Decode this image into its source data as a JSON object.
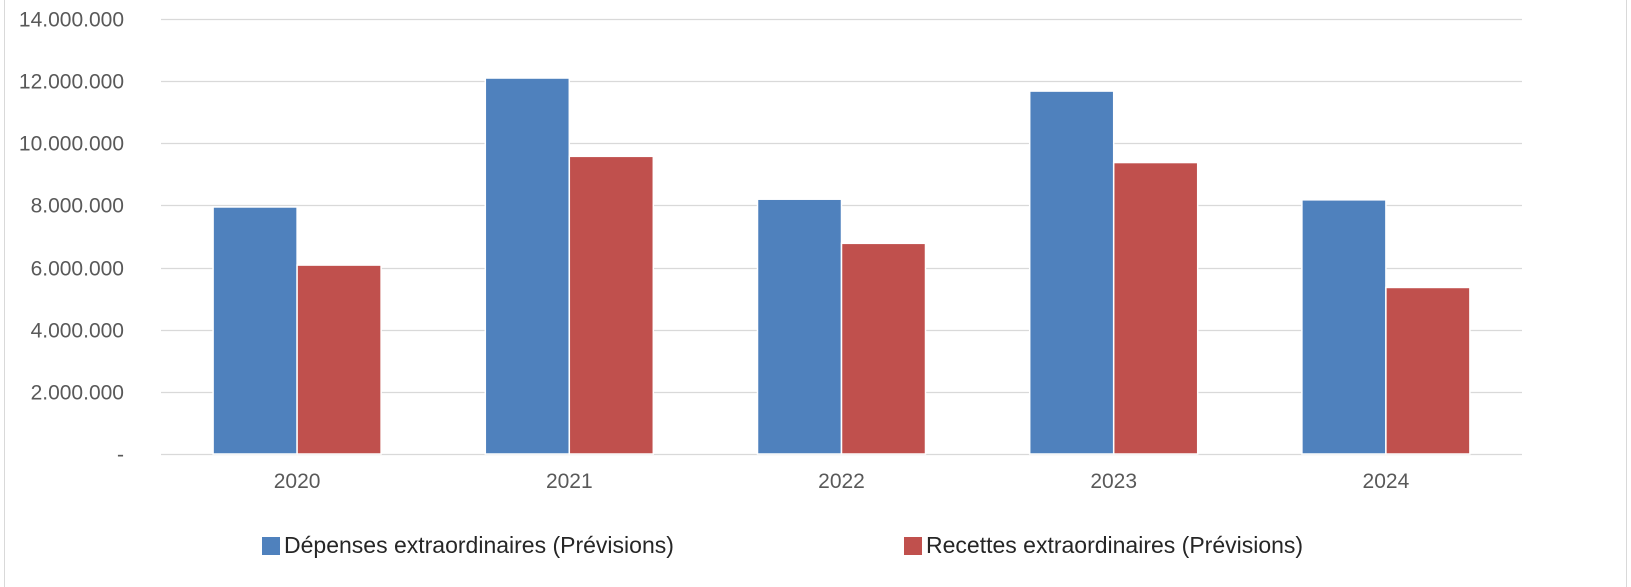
{
  "chart_data": {
    "type": "bar",
    "categories": [
      "2020",
      "2021",
      "2022",
      "2023",
      "2024"
    ],
    "series": [
      {
        "name": "Dépenses extraordinaires (Prévisions)",
        "color": "#4f81bd",
        "values": [
          7950000,
          12100000,
          8200000,
          11680000,
          8180000
        ]
      },
      {
        "name": "Recettes extraordinaires (Prévisions)",
        "color": "#c0504d",
        "values": [
          6080000,
          9580000,
          6780000,
          9380000,
          5360000
        ]
      }
    ],
    "ylim": [
      0,
      14000000
    ],
    "yticks": [
      0,
      2000000,
      4000000,
      6000000,
      8000000,
      10000000,
      12000000,
      14000000
    ],
    "ytick_labels": [
      "-",
      "2.000.000",
      "4.000.000",
      "6.000.000",
      "8.000.000",
      "10.000.000",
      "12.000.000",
      "14.000.000"
    ],
    "grid": true,
    "legend_position": "bottom",
    "title": "",
    "xlabel": "",
    "ylabel": ""
  }
}
